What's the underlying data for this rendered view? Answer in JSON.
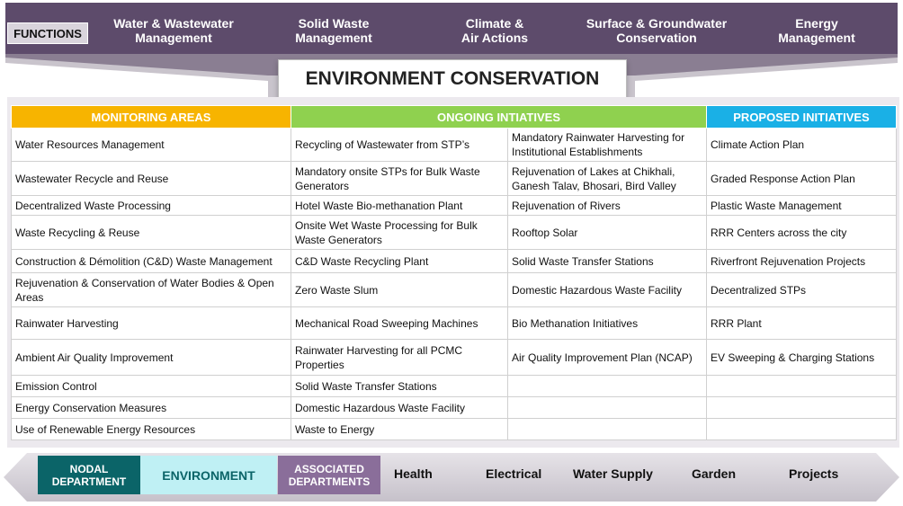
{
  "functions_label": "FUNCTIONS",
  "functions": [
    "Water & Wastewater\nManagement",
    "Solid Waste\nManagement",
    "Climate &\nAir Actions",
    "Surface & Groundwater\nConservation",
    "Energy\nManagement"
  ],
  "title": "ENVIRONMENT CONSERVATION",
  "headers": {
    "monitoring": "MONITORING AREAS",
    "ongoing": "ONGOING INTIATIVES",
    "proposed": "PROPOSED INITIATIVES"
  },
  "rows": [
    [
      "Water Resources Management",
      "Recycling of Wastewater from STP’s",
      "Mandatory Rainwater Harvesting for Institutional Establishments",
      "Climate Action Plan"
    ],
    [
      "Wastewater Recycle and Reuse",
      "Mandatory onsite STPs for Bulk Waste Generators",
      "Rejuvenation of  Lakes at Chikhali, Ganesh Talav, Bhosari, Bird Valley",
      "Graded Response Action Plan"
    ],
    [
      "Decentralized Waste Processing",
      "Hotel Waste Bio-methanation Plant",
      "Rejuvenation of Rivers",
      "Plastic Waste Management"
    ],
    [
      "Waste Recycling & Reuse",
      "Onsite Wet Waste Processing for Bulk Waste Generators",
      "Rooftop Solar",
      "RRR Centers across the city"
    ],
    [
      "Construction & Démolition (C&D) Waste Management",
      "C&D Waste Recycling Plant",
      " Solid Waste Transfer Stations",
      "Riverfront Rejuvenation Projects"
    ],
    [
      "Rejuvenation & Conservation of Water Bodies & Open Areas",
      "Zero Waste Slum",
      " Domestic Hazardous Waste Facility",
      "Decentralized STPs"
    ],
    [
      "Rainwater Harvesting",
      "Mechanical Road Sweeping Machines",
      " Bio Methanation Initiatives",
      " RRR Plant"
    ],
    [
      "Ambient Air Quality Improvement",
      "Rainwater Harvesting for all PCMC Properties",
      "  Air Quality Improvement Plan (NCAP)",
      " EV Sweeping & Charging Stations"
    ],
    [
      "Emission Control",
      " Solid Waste Transfer Stations",
      "",
      ""
    ],
    [
      "Energy Conservation Measures",
      " Domestic Hazardous Waste Facility",
      "",
      ""
    ],
    [
      "Use of Renewable Energy Resources",
      "  Waste to Energy",
      "",
      ""
    ]
  ],
  "departments": {
    "nodal": "NODAL\nDEPARTMENT",
    "environment": "ENVIRONMENT",
    "associated": "ASSOCIATED\nDEPARTMENTS",
    "list": [
      "Health",
      "Electrical",
      "Water Supply",
      "Garden",
      "Projects"
    ]
  },
  "colors": {
    "banner": "#5d4b6b",
    "monitoring": "#f7b400",
    "ongoing": "#8fd14f",
    "proposed": "#1ab0e6",
    "nodal": "#0b6468",
    "environment": "#bff0f4",
    "associated": "#8a6e9a"
  }
}
